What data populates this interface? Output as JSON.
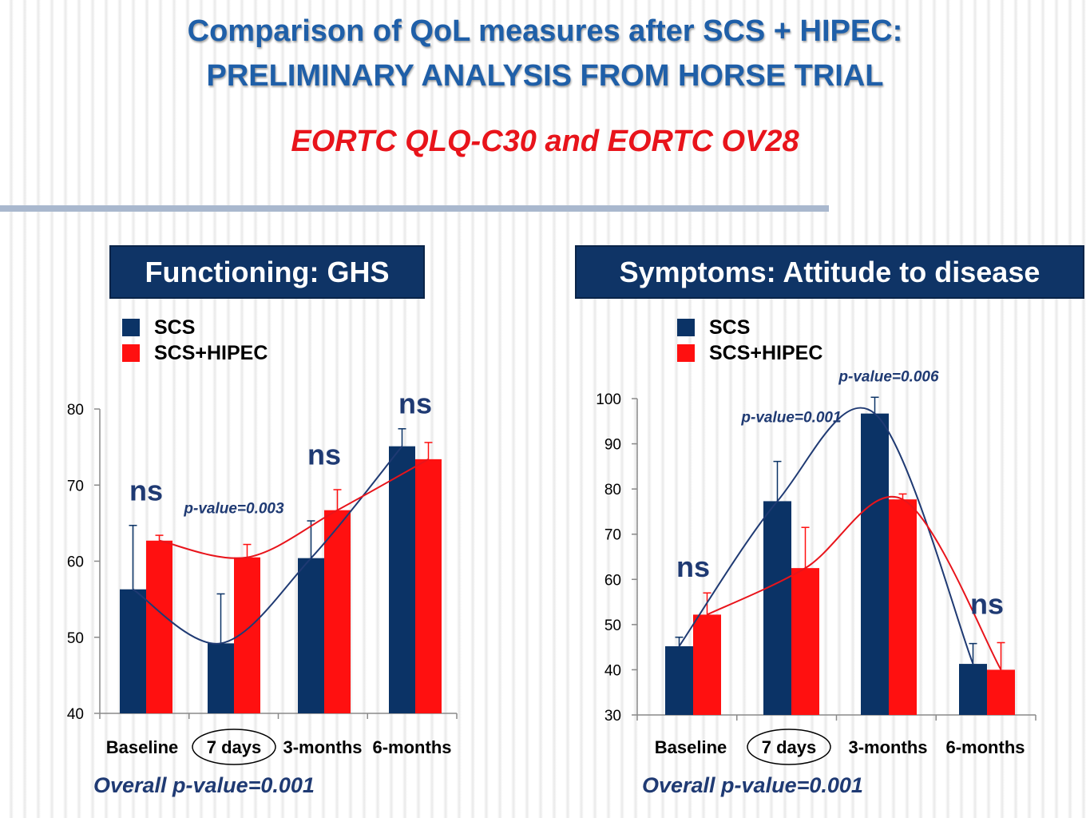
{
  "title_line1": "Comparison of QoL measures after SCS + HIPEC:",
  "title_line2": "PRELIMINARY ANALYSIS FROM HORSE TRIAL",
  "subtitle": "EORTC QLQ-C30 and EORTC OV28",
  "colors": {
    "scs": "#0b3366",
    "hipec": "#ff1010",
    "title": "#1f5fa8",
    "panel": "#0f3466",
    "annotation": "#1f3a73"
  },
  "chart_data": [
    {
      "type": "bar",
      "title": "Functioning: GHS",
      "categories": [
        "Baseline",
        "7 days",
        "3-months",
        "6-months"
      ],
      "highlighted_category": "7 days",
      "ylim": [
        40,
        80
      ],
      "yticks": [
        40,
        50,
        60,
        70,
        80
      ],
      "legend": [
        "SCS",
        "SCS+HIPEC"
      ],
      "series": [
        {
          "name": "SCS",
          "values": [
            56.3,
            49.2,
            60.4,
            75.1
          ],
          "error": [
            8.4,
            6.5,
            4.9,
            2.3
          ],
          "color": "#0b3366"
        },
        {
          "name": "SCS+HIPEC",
          "values": [
            62.7,
            60.5,
            66.7,
            73.4
          ],
          "error": [
            0.7,
            1.7,
            2.7,
            2.2
          ],
          "color": "#ff1010"
        }
      ],
      "trend_lines": true,
      "annotations": [
        {
          "text": "ns",
          "category": "Baseline",
          "y": 68
        },
        {
          "text": "p-value=0.003",
          "category": "7 days",
          "y": 66.3
        },
        {
          "text": "ns",
          "category": "3-months",
          "y": 72.7
        },
        {
          "text": "ns",
          "category": "6-months",
          "y": 79.4
        }
      ],
      "overall_pvalue": "Overall p-value=0.001"
    },
    {
      "type": "bar",
      "title": "Symptoms: Attitude to disease",
      "categories": [
        "Baseline",
        "7 days",
        "3-months",
        "6-months"
      ],
      "highlighted_category": "7 days",
      "ylim": [
        30,
        100
      ],
      "yticks": [
        30,
        40,
        50,
        60,
        70,
        80,
        90,
        100
      ],
      "legend": [
        "SCS",
        "SCS+HIPEC"
      ],
      "series": [
        {
          "name": "SCS",
          "values": [
            45.2,
            77.3,
            96.7,
            41.3
          ],
          "error": [
            2.0,
            8.8,
            3.6,
            4.5
          ],
          "color": "#0b3366"
        },
        {
          "name": "SCS+HIPEC",
          "values": [
            52.2,
            62.5,
            77.7,
            40.0
          ],
          "error": [
            4.8,
            9.0,
            1.2,
            6.0
          ],
          "color": "#ff1010"
        }
      ],
      "trend_lines": true,
      "annotations": [
        {
          "text": "ns",
          "category": "Baseline",
          "y": 60.6
        },
        {
          "text": "p-value=0.001",
          "category": "7 days",
          "y": 94.8
        },
        {
          "text": "p-value=0.006",
          "category": "3-months",
          "y": 103.8
        },
        {
          "text": "ns",
          "category": "6-months",
          "y": 52.4
        }
      ],
      "overall_pvalue": "Overall p-value=0.001"
    }
  ]
}
